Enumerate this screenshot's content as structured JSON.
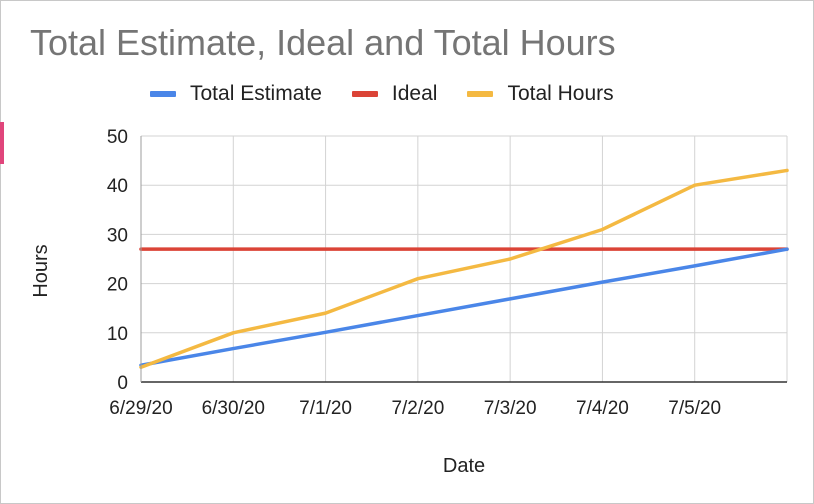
{
  "chart_data": {
    "type": "line",
    "title": "Total Estimate, Ideal and Total Hours",
    "xlabel": "Date",
    "ylabel": "Hours",
    "x_ticks": [
      "6/29/20",
      "6/30/20",
      "7/1/20",
      "7/2/20",
      "7/3/20",
      "7/4/20",
      "7/5/20"
    ],
    "x_range": [
      0,
      7
    ],
    "ylim": [
      0,
      50
    ],
    "y_ticks": [
      0,
      10,
      20,
      30,
      40,
      50
    ],
    "grid": true,
    "legend_position": "top",
    "series": [
      {
        "name": "Total Estimate",
        "color": "#4a86e8",
        "x": [
          0,
          1,
          2,
          3,
          4,
          5,
          6,
          7
        ],
        "values": [
          3.4,
          6.8,
          10.1,
          13.5,
          16.9,
          20.3,
          23.6,
          27
        ]
      },
      {
        "name": "Ideal",
        "color": "#db4437",
        "x": [
          0,
          1,
          2,
          3,
          4,
          5,
          6,
          7
        ],
        "values": [
          27,
          27,
          27,
          27,
          27,
          27,
          27,
          27
        ]
      },
      {
        "name": "Total Hours",
        "color": "#f4b942",
        "x": [
          0,
          1,
          2,
          3,
          4,
          5,
          6,
          7
        ],
        "values": [
          3,
          10,
          14,
          21,
          25,
          31,
          40,
          43
        ]
      }
    ]
  }
}
